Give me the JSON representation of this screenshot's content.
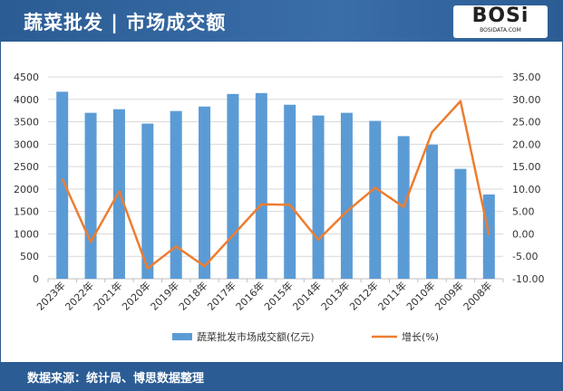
{
  "header": {
    "title": "蔬菜批发 | 市场成交额",
    "logo_text": "BOSi",
    "logo_sub": "BOSIDATA.COM"
  },
  "footer": {
    "source": "数据来源：统计局、博思数据整理"
  },
  "colors": {
    "bar": "#5b9bd5",
    "line": "#ed7d31",
    "header": "#2b5c94"
  },
  "chart_data": {
    "type": "bar+line",
    "categories": [
      "2023年",
      "2022年",
      "2021年",
      "2020年",
      "2019年",
      "2018年",
      "2017年",
      "2016年",
      "2015年",
      "2014年",
      "2013年",
      "2012年",
      "2011年",
      "2010年",
      "2009年",
      "2008年"
    ],
    "series": [
      {
        "name": "蔬菜批发市场成交额(亿元)",
        "type": "bar",
        "axis": "left",
        "values": [
          4170,
          3700,
          3780,
          3460,
          3740,
          3840,
          4120,
          4140,
          3880,
          3640,
          3700,
          3520,
          3180,
          2990,
          2450,
          1880
        ]
      },
      {
        "name": "增长(%)",
        "type": "line",
        "axis": "right",
        "values": [
          12.3,
          -1.8,
          9.5,
          -7.7,
          -2.8,
          -7.2,
          -0.3,
          6.6,
          6.5,
          -1.3,
          5.0,
          10.3,
          6.0,
          22.7,
          29.6,
          -0.2
        ]
      }
    ],
    "left_axis": {
      "ylim": [
        0,
        4500
      ],
      "ticks": [
        "0",
        "500",
        "1000",
        "1500",
        "2000",
        "2500",
        "3000",
        "3500",
        "4000",
        "4500"
      ]
    },
    "right_axis": {
      "ylim": [
        -10,
        35
      ],
      "ticks": [
        "-10.00",
        "-5.00",
        "0.00",
        "5.00",
        "10.00",
        "15.00",
        "20.00",
        "25.00",
        "30.00",
        "35.00"
      ]
    },
    "grid": true,
    "legend": "bottom"
  }
}
